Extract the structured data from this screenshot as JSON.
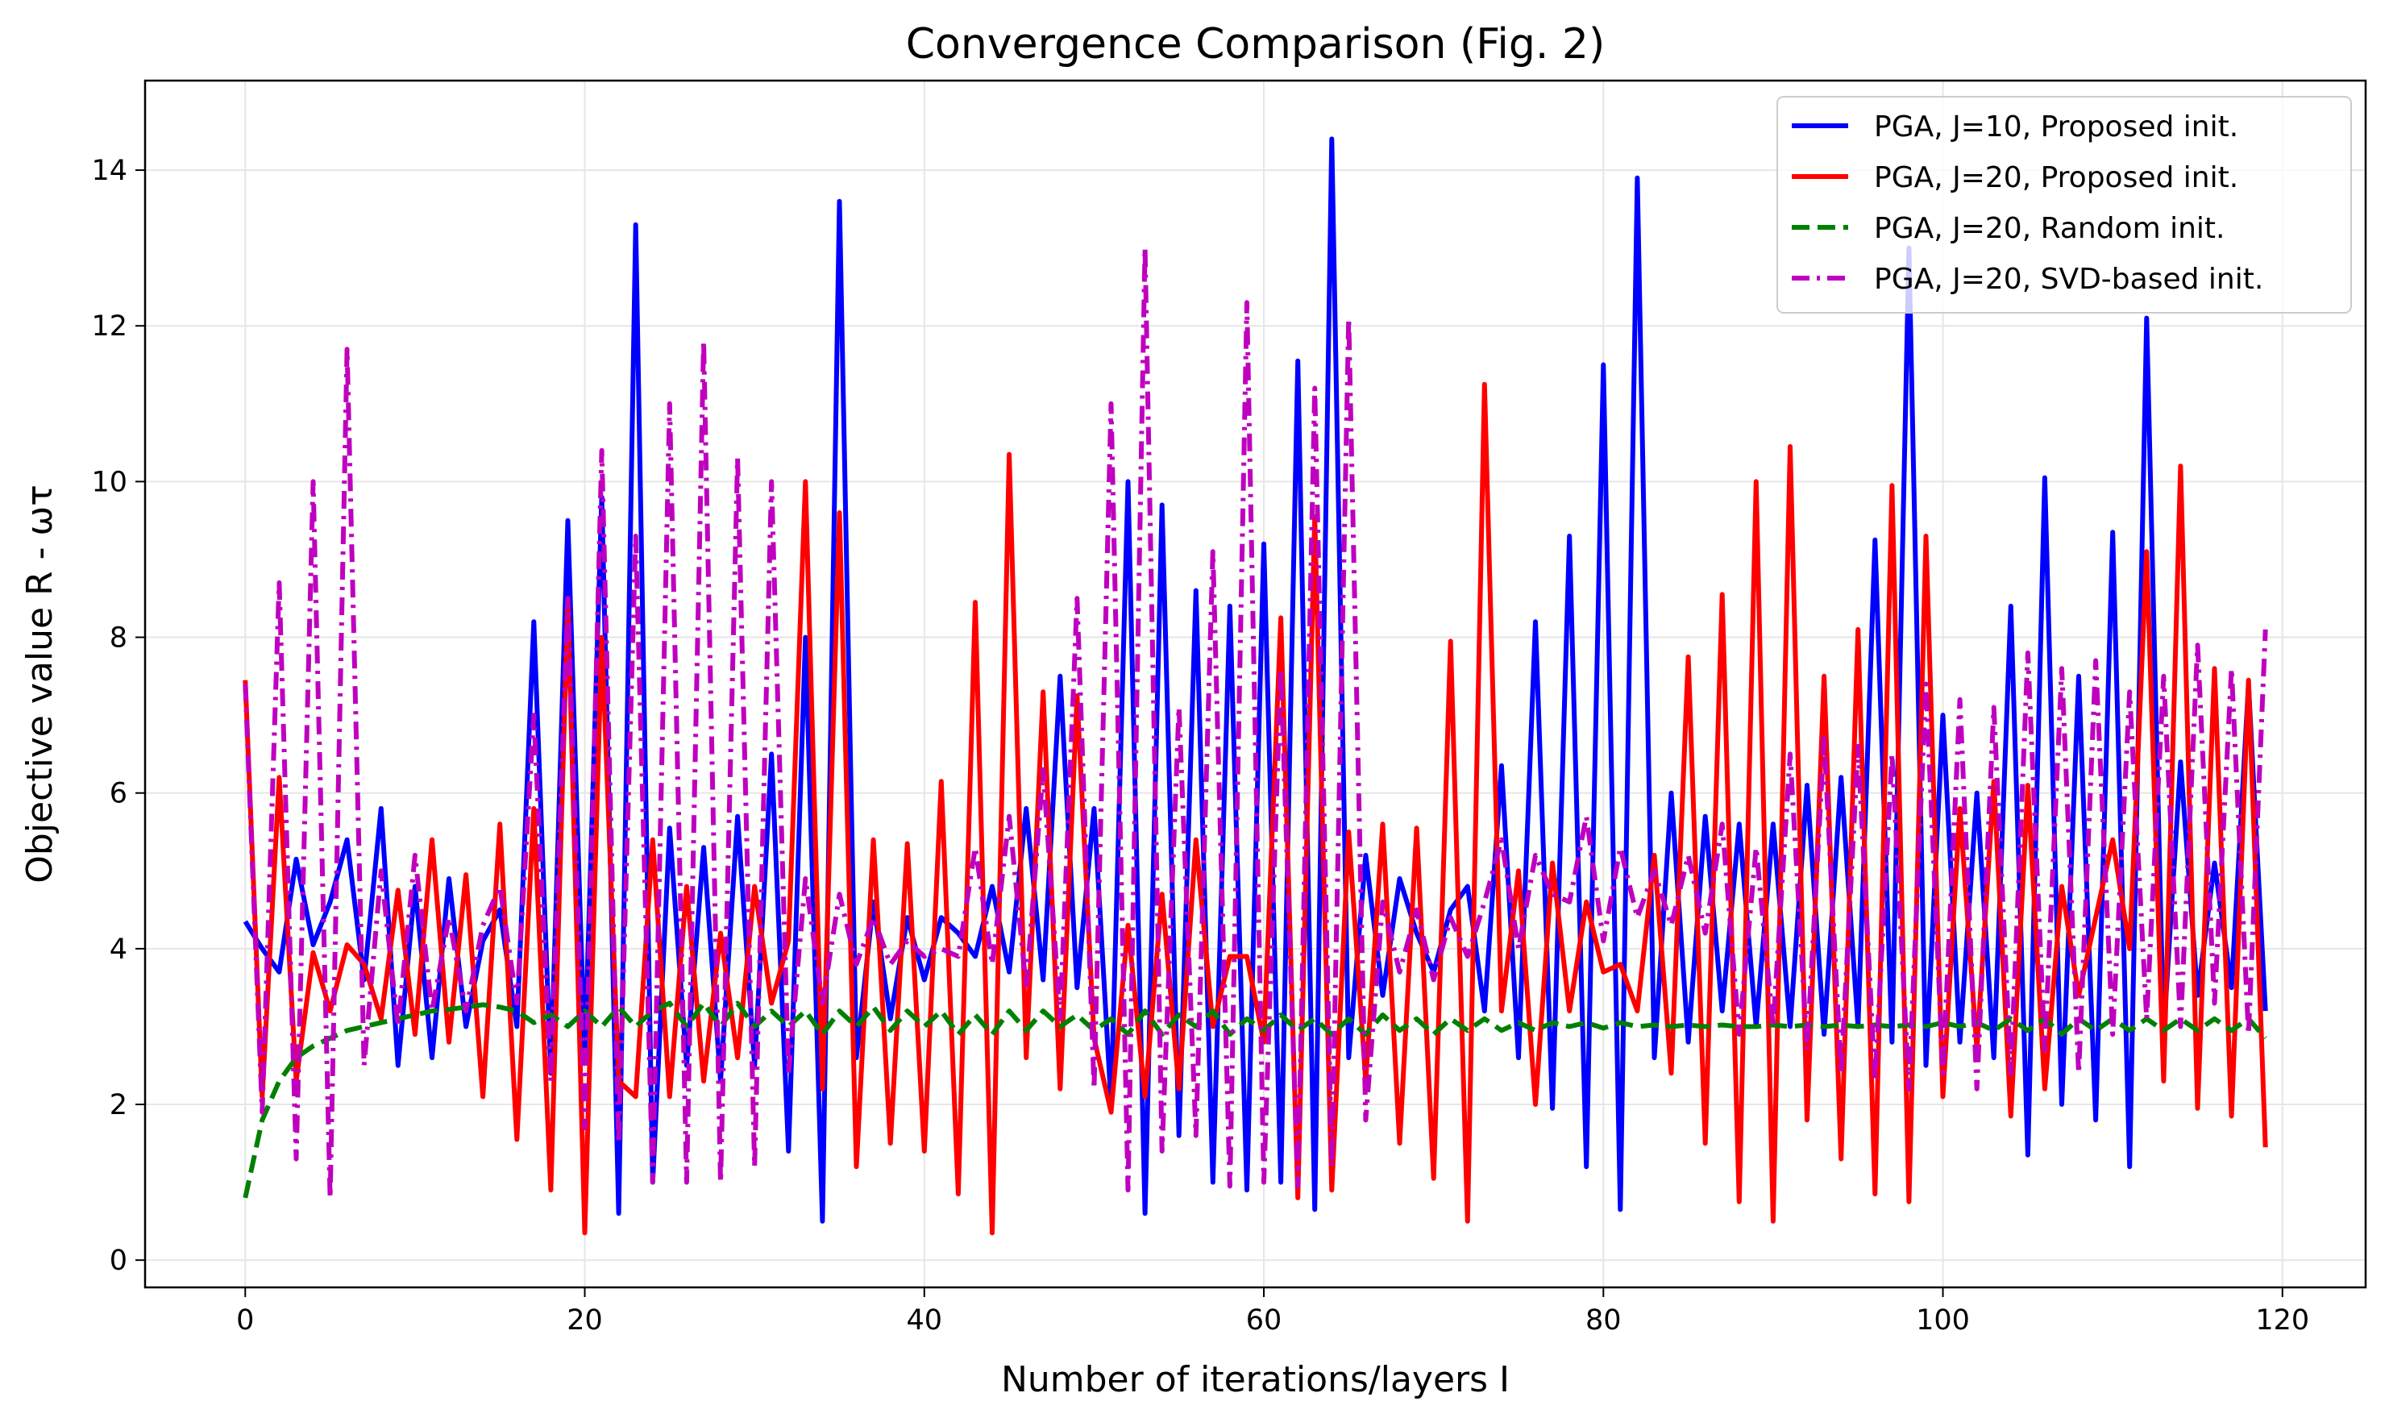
{
  "chart_data": {
    "type": "line",
    "title": "Convergence Comparison (Fig. 2)",
    "xlabel": "Number of iterations/layers I",
    "ylabel": "Objective value R - ωτ",
    "xlim": [
      -5.9,
      124.9
    ],
    "ylim": [
      -0.35,
      15.15
    ],
    "xticks": [
      0,
      20,
      40,
      60,
      80,
      100,
      120
    ],
    "yticks": [
      0,
      2,
      4,
      6,
      8,
      10,
      12,
      14
    ],
    "grid": true,
    "legend_position": "top-right",
    "series": [
      {
        "name": "PGA, J=10, Proposed init.",
        "color": "#0000ff",
        "style": "solid",
        "x": [
          0,
          1,
          2,
          3,
          4,
          5,
          6,
          7,
          8,
          9,
          10,
          11,
          12,
          13,
          14,
          15,
          16,
          17,
          18,
          19,
          20,
          21,
          22,
          23,
          24,
          25,
          26,
          27,
          28,
          29,
          30,
          31,
          32,
          33,
          34,
          35,
          36,
          37,
          38,
          39,
          40,
          41,
          42,
          43,
          44,
          45,
          46,
          47,
          48,
          49,
          50,
          51,
          52,
          53,
          54,
          55,
          56,
          57,
          58,
          59,
          60,
          61,
          62,
          63,
          64,
          65,
          66,
          67,
          68,
          69,
          70,
          71,
          72,
          73,
          74,
          75,
          76,
          77,
          78,
          79,
          80,
          81,
          82,
          83,
          84,
          85,
          86,
          87,
          88,
          89,
          90,
          91,
          92,
          93,
          94,
          95,
          96,
          97,
          98,
          99,
          100,
          101,
          102,
          103,
          104,
          105,
          106,
          107,
          108,
          109,
          110,
          111,
          112,
          113,
          114,
          115,
          116,
          117,
          118,
          119
        ],
        "y": [
          4.35,
          4.0,
          3.7,
          5.15,
          4.05,
          4.6,
          5.4,
          3.6,
          5.8,
          2.5,
          4.8,
          2.6,
          4.9,
          3.0,
          4.1,
          4.5,
          3.0,
          8.2,
          2.4,
          9.5,
          2.6,
          9.8,
          0.6,
          13.3,
          1.0,
          5.55,
          2.5,
          5.3,
          2.3,
          5.7,
          2.5,
          6.5,
          1.4,
          8.0,
          0.5,
          13.6,
          2.6,
          4.6,
          3.1,
          4.4,
          3.6,
          4.4,
          4.2,
          3.9,
          4.8,
          3.7,
          5.8,
          3.6,
          7.5,
          3.5,
          5.8,
          2.0,
          10.0,
          0.6,
          9.7,
          1.6,
          8.6,
          1.0,
          8.4,
          0.9,
          9.2,
          1.0,
          11.55,
          0.65,
          14.4,
          2.6,
          5.2,
          3.4,
          4.9,
          4.2,
          3.7,
          4.5,
          4.8,
          3.2,
          6.35,
          2.6,
          8.2,
          1.95,
          9.3,
          1.2,
          11.5,
          0.65,
          13.9,
          2.6,
          6.0,
          2.8,
          5.7,
          3.2,
          5.6,
          3.0,
          5.6,
          3.0,
          6.1,
          2.9,
          6.2,
          3.0,
          9.25,
          2.8,
          13.0,
          2.5,
          7.0,
          2.8,
          6.0,
          2.6,
          8.4,
          1.35,
          10.05,
          2.0,
          7.5,
          1.8,
          9.35,
          1.2,
          12.1,
          2.9,
          6.4,
          3.4,
          5.1,
          3.5,
          7.4,
          3.2
        ]
      },
      {
        "name": "PGA, J=20, Proposed init.",
        "color": "#ff0000",
        "style": "solid",
        "x": [
          0,
          1,
          2,
          3,
          4,
          5,
          6,
          7,
          8,
          9,
          10,
          11,
          12,
          13,
          14,
          15,
          16,
          17,
          18,
          19,
          20,
          21,
          22,
          23,
          24,
          25,
          26,
          27,
          28,
          29,
          30,
          31,
          32,
          33,
          34,
          35,
          36,
          37,
          38,
          39,
          40,
          41,
          42,
          43,
          44,
          45,
          46,
          47,
          48,
          49,
          50,
          51,
          52,
          53,
          54,
          55,
          56,
          57,
          58,
          59,
          60,
          61,
          62,
          63,
          64,
          65,
          66,
          67,
          68,
          69,
          70,
          71,
          72,
          73,
          74,
          75,
          76,
          77,
          78,
          79,
          80,
          81,
          82,
          83,
          84,
          85,
          86,
          87,
          88,
          89,
          90,
          91,
          92,
          93,
          94,
          95,
          96,
          97,
          98,
          99,
          100,
          101,
          102,
          103,
          104,
          105,
          106,
          107,
          108,
          109,
          110,
          111,
          112,
          113,
          114,
          115,
          116,
          117,
          118,
          119
        ],
        "y": [
          7.45,
          2.1,
          6.2,
          2.3,
          3.95,
          3.2,
          4.05,
          3.8,
          3.1,
          4.75,
          2.9,
          5.4,
          2.8,
          4.95,
          2.1,
          5.6,
          1.55,
          5.8,
          0.9,
          8.5,
          0.35,
          8.0,
          2.3,
          2.1,
          5.4,
          2.1,
          4.8,
          2.3,
          4.2,
          2.6,
          4.8,
          3.3,
          4.1,
          10.0,
          2.2,
          9.6,
          1.2,
          5.4,
          1.5,
          5.35,
          1.4,
          6.15,
          0.85,
          8.45,
          0.35,
          10.35,
          2.6,
          7.3,
          2.2,
          7.25,
          2.85,
          1.9,
          4.3,
          2.1,
          4.7,
          2.2,
          5.4,
          3.0,
          3.9,
          3.9,
          2.8,
          8.25,
          0.8,
          9.55,
          0.9,
          5.5,
          2.3,
          5.6,
          1.5,
          5.55,
          1.05,
          7.95,
          0.5,
          11.25,
          3.2,
          5.0,
          2.0,
          5.1,
          3.2,
          4.6,
          3.7,
          3.8,
          3.2,
          5.2,
          2.4,
          7.75,
          1.5,
          8.55,
          0.75,
          10.0,
          0.5,
          10.45,
          1.8,
          7.5,
          1.3,
          8.1,
          0.85,
          9.95,
          0.75,
          9.3,
          2.1,
          5.8,
          2.7,
          6.15,
          1.85,
          6.1,
          2.2,
          4.8,
          3.4,
          4.4,
          5.4,
          4.0,
          9.1,
          2.3,
          10.2,
          1.95,
          7.6,
          1.85,
          7.45,
          1.45
        ]
      },
      {
        "name": "PGA, J=20, Random init.",
        "color": "#008000",
        "style": "dashed",
        "x": [
          0,
          1,
          2,
          3,
          4,
          5,
          6,
          7,
          8,
          9,
          10,
          11,
          12,
          13,
          14,
          15,
          16,
          17,
          18,
          19,
          20,
          21,
          22,
          23,
          24,
          25,
          26,
          27,
          28,
          29,
          30,
          31,
          32,
          33,
          34,
          35,
          36,
          37,
          38,
          39,
          40,
          41,
          42,
          43,
          44,
          45,
          46,
          47,
          48,
          49,
          50,
          51,
          52,
          53,
          54,
          55,
          56,
          57,
          58,
          59,
          60,
          61,
          62,
          63,
          64,
          65,
          66,
          67,
          68,
          69,
          70,
          71,
          72,
          73,
          74,
          75,
          76,
          77,
          78,
          79,
          80,
          81,
          82,
          83,
          84,
          85,
          86,
          87,
          88,
          89,
          90,
          91,
          92,
          93,
          94,
          95,
          96,
          97,
          98,
          99,
          100,
          101,
          102,
          103,
          104,
          105,
          106,
          107,
          108,
          109,
          110,
          111,
          112,
          113,
          114,
          115,
          116,
          117,
          118,
          119
        ],
        "y": [
          0.8,
          1.8,
          2.3,
          2.6,
          2.75,
          2.85,
          2.95,
          3.0,
          3.05,
          3.1,
          3.15,
          3.2,
          3.22,
          3.25,
          3.28,
          3.25,
          3.2,
          3.05,
          3.15,
          3.0,
          3.2,
          3.0,
          3.25,
          3.0,
          3.2,
          3.3,
          3.0,
          3.3,
          3.0,
          3.3,
          3.0,
          3.2,
          3.0,
          3.2,
          2.9,
          3.2,
          3.0,
          3.25,
          2.95,
          3.2,
          3.0,
          3.2,
          2.9,
          3.15,
          2.9,
          3.2,
          2.95,
          3.2,
          3.0,
          3.15,
          2.95,
          3.1,
          2.9,
          3.2,
          2.9,
          3.15,
          3.0,
          3.2,
          2.9,
          3.1,
          2.95,
          3.15,
          2.95,
          3.1,
          2.9,
          3.1,
          2.9,
          3.15,
          2.95,
          3.1,
          2.9,
          3.1,
          2.95,
          3.1,
          2.95,
          3.05,
          2.95,
          3.05,
          3.0,
          3.05,
          2.98,
          3.05,
          3.0,
          3.02,
          3.0,
          3.02,
          3.0,
          3.02,
          3.0,
          3.0,
          3.02,
          3.0,
          3.02,
          3.0,
          3.02,
          3.0,
          3.02,
          3.0,
          3.02,
          3.0,
          3.05,
          3.0,
          3.05,
          2.95,
          3.1,
          2.95,
          3.1,
          2.9,
          3.1,
          2.95,
          3.1,
          2.95,
          3.1,
          2.95,
          3.1,
          2.95,
          3.1,
          2.95,
          3.1,
          2.85
        ]
      },
      {
        "name": "PGA, J=20, SVD-based init.",
        "color": "#bf00bf",
        "style": "dashdot",
        "x": [
          0,
          1,
          2,
          3,
          4,
          5,
          6,
          7,
          8,
          9,
          10,
          11,
          12,
          13,
          14,
          15,
          16,
          17,
          18,
          19,
          20,
          21,
          22,
          23,
          24,
          25,
          26,
          27,
          28,
          29,
          30,
          31,
          32,
          33,
          34,
          35,
          36,
          37,
          38,
          39,
          40,
          41,
          42,
          43,
          44,
          45,
          46,
          47,
          48,
          49,
          50,
          51,
          52,
          53,
          54,
          55,
          56,
          57,
          58,
          59,
          60,
          61,
          62,
          63,
          64,
          65,
          66,
          67,
          68,
          69,
          70,
          71,
          72,
          73,
          74,
          75,
          76,
          77,
          78,
          79,
          80,
          81,
          82,
          83,
          84,
          85,
          86,
          87,
          88,
          89,
          90,
          91,
          92,
          93,
          94,
          95,
          96,
          97,
          98,
          99,
          100,
          101,
          102,
          103,
          104,
          105,
          106,
          107,
          108,
          109,
          110,
          111,
          112,
          113,
          114,
          115,
          116,
          117,
          118,
          119
        ],
        "y": [
          7.4,
          1.9,
          8.7,
          1.3,
          10.0,
          0.8,
          11.7,
          2.5,
          5.0,
          3.0,
          5.2,
          3.2,
          4.4,
          3.2,
          4.3,
          4.8,
          3.3,
          7.0,
          2.3,
          8.5,
          1.7,
          10.4,
          1.5,
          9.3,
          1.0,
          11.0,
          1.0,
          11.8,
          1.0,
          10.3,
          1.2,
          10.0,
          2.4,
          4.9,
          3.3,
          4.7,
          3.8,
          4.4,
          3.8,
          4.1,
          3.9,
          4.0,
          3.9,
          5.3,
          3.8,
          5.7,
          3.5,
          6.3,
          3.1,
          8.5,
          2.2,
          11.0,
          0.9,
          13.0,
          1.4,
          7.1,
          1.6,
          9.1,
          0.95,
          12.3,
          1.0,
          7.6,
          0.95,
          11.2,
          1.2,
          12.1,
          1.8,
          4.6,
          3.7,
          4.5,
          3.6,
          4.4,
          3.9,
          4.6,
          5.4,
          4.0,
          5.2,
          4.7,
          4.6,
          5.7,
          4.1,
          5.3,
          4.4,
          5.0,
          4.3,
          5.2,
          4.2,
          5.6,
          2.9,
          5.3,
          3.0,
          6.5,
          2.7,
          6.7,
          2.4,
          6.6,
          2.3,
          6.5,
          2.2,
          7.4,
          2.4,
          7.2,
          2.2,
          7.1,
          2.4,
          7.8,
          2.7,
          7.6,
          2.4,
          7.7,
          2.9,
          7.3,
          3.1,
          7.5,
          3.0,
          7.9,
          3.3,
          7.6,
          2.9,
          8.1
        ]
      }
    ]
  }
}
